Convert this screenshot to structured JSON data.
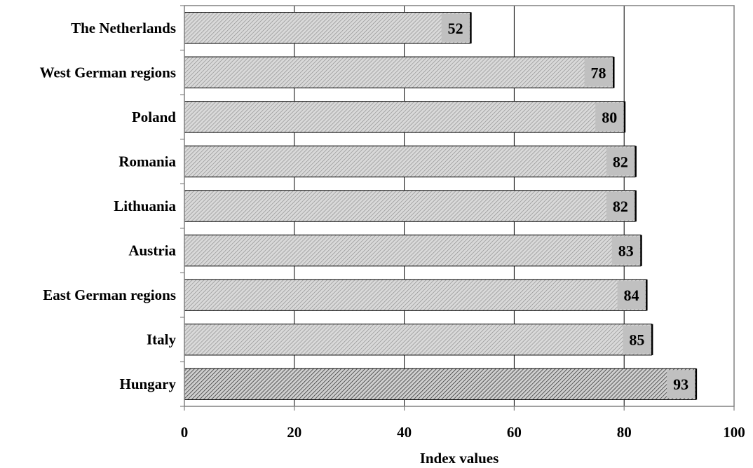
{
  "chart_data": {
    "type": "bar",
    "orientation": "horizontal",
    "categories": [
      "The Netherlands",
      "West German regions",
      "Poland",
      "Romania",
      "Lithuania",
      "Austria",
      "East German regions",
      "Italy",
      "Hungary"
    ],
    "values": [
      52,
      78,
      80,
      82,
      82,
      83,
      84,
      85,
      93
    ],
    "highlight_category": "Hungary",
    "data_labels": [
      "52",
      "78",
      "80",
      "82",
      "82",
      "83",
      "84",
      "85",
      "93"
    ],
    "xlabel": "Index values",
    "ylabel": "",
    "title": "",
    "xlim": [
      0,
      100
    ],
    "xticks": [
      0,
      20,
      40,
      60,
      80,
      100
    ],
    "xtick_labels": [
      "0",
      "20",
      "40",
      "60",
      "80",
      "100"
    ],
    "grid": "vertical gridlines",
    "legend": "none",
    "colors": {
      "bar_fill": "#d9d9d9",
      "bar_hatch": "#8c8c8c",
      "highlight_hatch": "#3a3a3a",
      "label_box": "#c0c0c0",
      "axis": "#808080",
      "grid": "#000000"
    }
  }
}
